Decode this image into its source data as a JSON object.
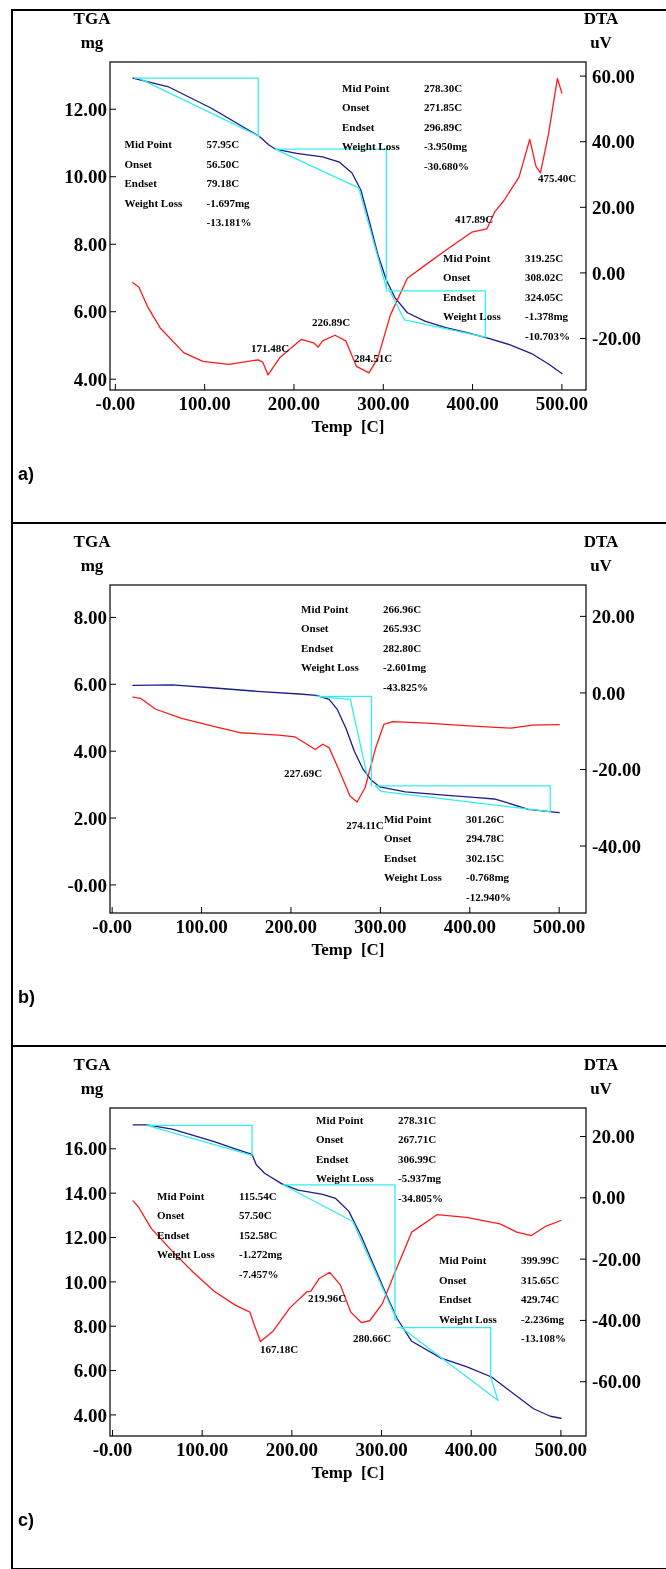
{
  "chart_data": [
    {
      "type": "line",
      "title": "a)",
      "xlabel": "Temp  [C]",
      "ylabel": "TGA\nmg",
      "y2label": "DTA\nuV",
      "xlim": [
        -6,
        527
      ],
      "xticks": [
        {
          "value": 0,
          "label": "-0.00"
        },
        {
          "value": 100,
          "label": "100.00"
        },
        {
          "value": 200,
          "label": "200.00"
        },
        {
          "value": 300,
          "label": "300.00"
        },
        {
          "value": 400,
          "label": "400.00"
        },
        {
          "value": 500,
          "label": "500.00"
        }
      ],
      "ylim": [
        3.68,
        13.4
      ],
      "yticks": [
        {
          "value": 4,
          "label": "4.00"
        },
        {
          "value": 6,
          "label": "6.00"
        },
        {
          "value": 8,
          "label": "8.00"
        },
        {
          "value": 10,
          "label": "10.00"
        },
        {
          "value": 12,
          "label": "12.00"
        }
      ],
      "y2lim": [
        -35.7,
        64.3
      ],
      "y2ticks": [
        {
          "value": -20,
          "label": "-20.00"
        },
        {
          "value": 0,
          "label": "0.00"
        },
        {
          "value": 20,
          "label": "20.00"
        },
        {
          "value": 40,
          "label": "40.00"
        },
        {
          "value": 60,
          "label": "60.00"
        }
      ],
      "series": [
        {
          "color": "#1c1c8a",
          "x": [
            19.6,
            59.8,
            107.6,
            161,
            172,
            179,
            203,
            232,
            251,
            265,
            275,
            284,
            294,
            303.5,
            313,
            327,
            346.6,
            370,
            394,
            418,
            442,
            466,
            485,
            500
          ],
          "values": [
            12.92,
            12.66,
            12.03,
            11.2,
            10.94,
            10.82,
            10.69,
            10.59,
            10.43,
            10.11,
            9.6,
            8.71,
            7.69,
            6.93,
            6.42,
            5.97,
            5.72,
            5.53,
            5.38,
            5.21,
            5.02,
            4.76,
            4.45,
            4.17
          ]
        },
        {
          "color": "#ff1a1a",
          "axis": "y2",
          "x": [
            19.6,
            26.3,
            35.9,
            50,
            76.5,
            98,
            127,
            160,
            165,
            171,
            184,
            208,
            222,
            227,
            232,
            246,
            258,
            270,
            284,
            294,
            308,
            327,
            346.6,
            370,
            399,
            416,
            425,
            435,
            452,
            464,
            471,
            476,
            485,
            495,
            500
          ],
          "values": [
            -3,
            -4.3,
            -10.2,
            -16.7,
            -24.3,
            -27,
            -27.9,
            -26.5,
            -27.2,
            -31.1,
            -25.9,
            -20.3,
            -21.3,
            -22.6,
            -20.7,
            -19,
            -20.7,
            -28.5,
            -30.5,
            -25.9,
            -12.8,
            -1.6,
            2.3,
            6.9,
            12.4,
            13.4,
            18.7,
            22,
            29.2,
            40.7,
            32.5,
            30.5,
            42.3,
            59.3,
            54.8
          ]
        },
        {
          "color": "#33eeee",
          "x": [
            21.5,
            160,
            160
          ],
          "values": [
            12.92,
            12.92,
            11.2
          ]
        },
        {
          "color": "#33eeee",
          "x": [
            26,
            161
          ],
          "values": [
            12.92,
            11.2
          ]
        },
        {
          "color": "#33eeee",
          "x": [
            179,
            303.5,
            303.5
          ],
          "values": [
            10.82,
            10.82,
            6.61
          ]
        },
        {
          "color": "#33eeee",
          "x": [
            179,
            272.5,
            303.5
          ],
          "values": [
            10.82,
            9.67,
            6.7
          ]
        },
        {
          "color": "#33eeee",
          "x": [
            306,
            414.4,
            414.4
          ],
          "values": [
            6.62,
            6.62,
            5.27
          ]
        },
        {
          "color": "#33eeee",
          "x": [
            306,
            323.6,
            414.4
          ],
          "values": [
            6.68,
            5.76,
            5.25
          ]
        }
      ],
      "annotations": [
        "Mid Point",
        "57.95C",
        "Onset",
        "56.50C",
        "Endset",
        "79.18C",
        "Weight Loss",
        "-1.697mg",
        "-13.181%",
        "Mid Point",
        "278.30C",
        "Onset",
        "271.85C",
        "Endset",
        "296.89C",
        "Weight Loss",
        "-3.950mg",
        "-30.680%",
        "Mid Point",
        "319.25C",
        "Onset",
        "308.02C",
        "Endset",
        "324.05C",
        "Weight Loss",
        "-1.378mg",
        "-10.703%",
        "171.48C",
        "226.89C",
        "284.51C",
        "417.89C",
        "475.40C"
      ]
    },
    {
      "type": "line",
      "title": "b)",
      "xlabel": "Temp  [C]",
      "ylabel": "TGA\nmg",
      "y2label": "DTA\nuV",
      "xlim": [
        -2.4,
        530
      ],
      "xticks": [
        {
          "value": 0,
          "label": "-0.00"
        },
        {
          "value": 100,
          "label": "100.00"
        },
        {
          "value": 200,
          "label": "200.00"
        },
        {
          "value": 300,
          "label": "300.00"
        },
        {
          "value": 400,
          "label": "400.00"
        },
        {
          "value": 500,
          "label": "500.00"
        }
      ],
      "ylim": [
        -0.84,
        8.97
      ],
      "yticks": [
        {
          "value": 0,
          "label": "-0.00"
        },
        {
          "value": 2,
          "label": "2.00"
        },
        {
          "value": 4,
          "label": "4.00"
        },
        {
          "value": 6,
          "label": "6.00"
        },
        {
          "value": 8,
          "label": "8.00"
        }
      ],
      "y2lim": [
        -57.5,
        28.2
      ],
      "y2ticks": [
        {
          "value": -40,
          "label": "-40.00"
        },
        {
          "value": -20,
          "label": "-20.00"
        },
        {
          "value": 0,
          "label": "0.00"
        },
        {
          "value": 20,
          "label": "20.00"
        }
      ],
      "series": [
        {
          "color": "#1c1c8a",
          "x": [
            23.2,
            67.3,
            114.7,
            162,
            209.5,
            228.4,
            242.7,
            252,
            261.6,
            271,
            280.6,
            290,
            299.5,
            328,
            375,
            408.5,
            427.5,
            441.7,
            465.4,
            500
          ],
          "values": [
            5.97,
            5.98,
            5.89,
            5.79,
            5.71,
            5.67,
            5.55,
            5.24,
            4.68,
            3.99,
            3.46,
            3.13,
            2.93,
            2.78,
            2.68,
            2.61,
            2.57,
            2.46,
            2.26,
            2.16
          ]
        },
        {
          "color": "#ff1a1a",
          "axis": "y2",
          "x": [
            23.2,
            31.8,
            48.3,
            76.8,
            114.7,
            143,
            186,
            204.7,
            216.6,
            227,
            235.5,
            242.7,
            257,
            266,
            274,
            283,
            294.8,
            304,
            313.7,
            351.7,
            399,
            446.4,
            470,
            500
          ],
          "values": [
            -1.1,
            -1.4,
            -4.2,
            -6.6,
            -8.8,
            -10.4,
            -11,
            -11.5,
            -13.2,
            -14.8,
            -13.4,
            -14.3,
            -21.9,
            -26.9,
            -28.5,
            -24.7,
            -14.3,
            -8.2,
            -7.5,
            -7.9,
            -8.6,
            -9.2,
            -8.4,
            -8.3
          ]
        },
        {
          "color": "#33eeee",
          "x": [
            228.4,
            290,
            290
          ],
          "values": [
            5.64,
            5.64,
            2.96
          ]
        },
        {
          "color": "#33eeee",
          "x": [
            228.4,
            266.4,
            285
          ],
          "values": [
            5.64,
            5.55,
            3.3
          ]
        },
        {
          "color": "#33eeee",
          "x": [
            294.8,
            490,
            490
          ],
          "values": [
            2.96,
            2.96,
            2.19
          ]
        },
        {
          "color": "#33eeee",
          "x": [
            294.8,
            300.9,
            489
          ],
          "values": [
            2.96,
            2.8,
            2.19
          ]
        }
      ],
      "annotations": [
        "Mid Point",
        "266.96C",
        "Onset",
        "265.93C",
        "Endset",
        "282.80C",
        "Weight Loss",
        "-2.601mg",
        "-43.825%",
        "Mid Point",
        "301.26C",
        "Onset",
        "294.78C",
        "Endset",
        "302.15C",
        "Weight Loss",
        "-0.768mg",
        "-12.940%",
        "227.69C",
        "274.11C"
      ]
    },
    {
      "type": "line",
      "title": "c)",
      "xlabel": "Temp  [C]",
      "ylabel": "TGA\nmg",
      "y2label": "DTA\nuV",
      "xlim": [
        -2.8,
        528
      ],
      "xticks": [
        {
          "value": 0,
          "label": "-0.00"
        },
        {
          "value": 100,
          "label": "100.00"
        },
        {
          "value": 200,
          "label": "200.00"
        },
        {
          "value": 300,
          "label": "300.00"
        },
        {
          "value": 400,
          "label": "400.00"
        },
        {
          "value": 500,
          "label": "500.00"
        }
      ],
      "ylim": [
        3.05,
        17.84
      ],
      "yticks": [
        {
          "value": 4,
          "label": "4.00"
        },
        {
          "value": 6,
          "label": "6.00"
        },
        {
          "value": 8,
          "label": "8.00"
        },
        {
          "value": 10,
          "label": "10.00"
        },
        {
          "value": 12,
          "label": "12.00"
        },
        {
          "value": 14,
          "label": "14.00"
        },
        {
          "value": 16,
          "label": "16.00"
        }
      ],
      "y2lim": [
        -77.7,
        29.3
      ],
      "y2ticks": [
        {
          "value": -60,
          "label": "-60.00"
        },
        {
          "value": -40,
          "label": "-40.00"
        },
        {
          "value": -20,
          "label": "-20.00"
        },
        {
          "value": 0,
          "label": "0.00"
        },
        {
          "value": 20,
          "label": "20.00"
        }
      ],
      "series": [
        {
          "color": "#1c1c8a",
          "x": [
            23,
            38.4,
            66.5,
            90,
            113.4,
            136.8,
            155.6,
            160.3,
            169.6,
            188.4,
            207,
            234.3,
            248.8,
            263.4,
            277.4,
            291.5,
            305.5,
            317.2,
            333.6,
            366.4,
            394.6,
            422.7,
            441.4,
            469.5,
            488.3,
            500
          ],
          "values": [
            17.08,
            17.08,
            16.89,
            16.61,
            16.32,
            16.0,
            15.75,
            15.28,
            14.9,
            14.43,
            14.14,
            13.95,
            13.76,
            13.19,
            12.06,
            10.73,
            9.41,
            8.36,
            7.32,
            6.56,
            6.18,
            5.71,
            5.14,
            4.28,
            3.94,
            3.85
          ]
        },
        {
          "color": "#ff1a1a",
          "axis": "y2",
          "x": [
            23,
            29,
            43,
            66.5,
            90,
            113.4,
            136.8,
            153.2,
            158,
            165,
            179,
            197.8,
            216.5,
            221,
            230.6,
            242.3,
            254,
            265.7,
            277.4,
            286.8,
            300.8,
            315,
            333.6,
            361.8,
            394.6,
            432,
            450.8,
            467.2,
            483.6,
            500
          ],
          "values": [
            -1.0,
            -3.0,
            -9.9,
            -17.4,
            -24.3,
            -30.5,
            -35,
            -37.3,
            -41.4,
            -46.9,
            -43.5,
            -35.9,
            -30.7,
            -30.5,
            -26.3,
            -24.3,
            -28.4,
            -37.3,
            -40.7,
            -40.1,
            -34.6,
            -24.3,
            -11.2,
            -5.5,
            -6.4,
            -8.5,
            -11.2,
            -12.3,
            -9.2,
            -7.4
          ]
        },
        {
          "color": "#33eeee",
          "x": [
            38.4,
            155.6,
            155.6
          ],
          "values": [
            17.06,
            17.06,
            15.75
          ]
        },
        {
          "color": "#33eeee",
          "x": [
            38.4,
            155.6
          ],
          "values": [
            17.06,
            15.7
          ]
        },
        {
          "color": "#33eeee",
          "x": [
            190.7,
            315,
            315
          ],
          "values": [
            14.37,
            14.37,
            8.27
          ]
        },
        {
          "color": "#33eeee",
          "x": [
            190.7,
            268,
            317.2
          ],
          "values": [
            14.37,
            12.72,
            8.27
          ]
        },
        {
          "color": "#33eeee",
          "x": [
            317.2,
            421.7,
            421.7,
            429.7
          ],
          "values": [
            7.94,
            7.94,
            5.71,
            4.66
          ]
        },
        {
          "color": "#33eeee",
          "x": [
            321.9,
            429.7
          ],
          "values": [
            7.94,
            4.66
          ]
        }
      ],
      "annotations": [
        "Mid Point",
        "115.54C",
        "Onset",
        "57.50C",
        "Endset",
        "152.58C",
        "Weight Loss",
        "-1.272mg",
        "-7.457%",
        "Mid Point",
        "278.31C",
        "Onset",
        "267.71C",
        "Endset",
        "306.99C",
        "Weight Loss",
        "-5.937mg",
        "-34.805%",
        "Mid Point",
        "399.99C",
        "Onset",
        "315.65C",
        "Endset",
        "429.74C",
        "Weight Loss",
        "-2.236mg",
        "-13.108%",
        "167.18C",
        "219.96C",
        "280.66C"
      ]
    }
  ]
}
